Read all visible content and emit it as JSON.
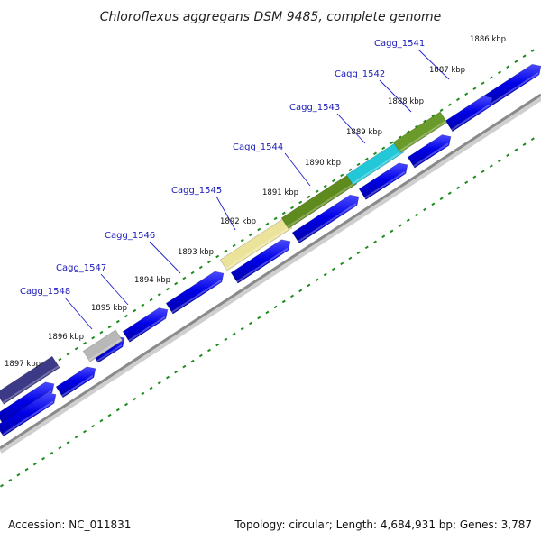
{
  "title": "Chloroflexus aggregans DSM 9485, complete genome",
  "footer": {
    "accession": "Accession: NC_011831",
    "summary": "Topology: circular; Length: 4,684,931 bp; Genes: 3,787"
  },
  "colors": {
    "forward_strand": "#0000e6",
    "tick_mark": "#1f8c1f",
    "backbone": "#8a8a8a",
    "label": "#1a1ab8"
  },
  "ticks": [
    "1886 kbp",
    "1887 kbp",
    "1888 kbp",
    "1889 kbp",
    "1890 kbp",
    "1891 kbp",
    "1892 kbp",
    "1893 kbp",
    "1894 kbp",
    "1895 kbp",
    "1896 kbp",
    "1897 kbp"
  ],
  "highlighted_genes": [
    {
      "label": "Cagg_1541",
      "color": "#1fc6c6"
    },
    {
      "label": "Cagg_1542",
      "color": "#6a9a2a"
    },
    {
      "label": "Cagg_1543",
      "color": "#22c8d8"
    },
    {
      "label": "Cagg_1544",
      "color": "#5e8a1e"
    },
    {
      "label": "Cagg_1545",
      "color": "#ece39a"
    },
    {
      "label": "Cagg_1546",
      "color": "#ece39a"
    },
    {
      "label": "Cagg_1547",
      "color": "#b8b8b8"
    },
    {
      "label": "Cagg_1548",
      "color": "#3c3a86"
    }
  ]
}
